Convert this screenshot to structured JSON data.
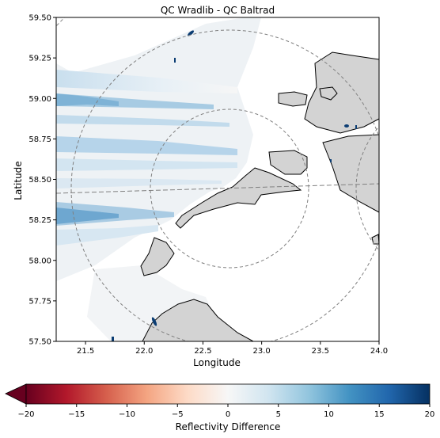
{
  "title": "QC Wradlib - QC Baltrad",
  "xaxis": {
    "label": "Longitude",
    "range": [
      21.25,
      24.0
    ],
    "ticks": [
      "21.5",
      "22.0",
      "22.5",
      "23.0",
      "23.5",
      "24.0"
    ],
    "tick_values": [
      21.5,
      22.0,
      22.5,
      23.0,
      23.5,
      24.0
    ]
  },
  "yaxis": {
    "label": "Latitude",
    "range": [
      57.5,
      59.5
    ],
    "ticks": [
      "57.50",
      "57.75",
      "58.00",
      "58.25",
      "58.50",
      "58.75",
      "59.00",
      "59.25",
      "59.50"
    ],
    "tick_values": [
      57.5,
      57.75,
      58.0,
      58.25,
      58.5,
      58.75,
      59.0,
      59.25,
      59.5
    ]
  },
  "colorbar": {
    "label": "Reflectivity Difference",
    "range": [
      -20,
      20
    ],
    "extend": "min",
    "ticks": [
      "−20",
      "−15",
      "−10",
      "−5",
      "0",
      "5",
      "10",
      "15",
      "20"
    ],
    "tick_values": [
      -20,
      -15,
      -10,
      -5,
      0,
      5,
      10,
      15,
      20
    ],
    "colormap": "RdBu",
    "stops": [
      "#67001f",
      "#b2182b",
      "#d6604d",
      "#f4a582",
      "#fddbc7",
      "#f7f7f7",
      "#d1e5f0",
      "#92c5de",
      "#4393c3",
      "#2166ac",
      "#053061"
    ]
  },
  "colors": {
    "land": "#d3d3d3",
    "coast": "#000000",
    "range_rings": "#808080"
  },
  "radar_beams": [
    {
      "lat_start": 58.98,
      "lat_end": 59.06,
      "lon_end": 22.0,
      "value": 9
    },
    {
      "lat_start": 58.78,
      "lat_end": 58.86,
      "lon_end": 22.1,
      "value": 4
    },
    {
      "lat_start": 58.7,
      "lat_end": 58.76,
      "lon_end": 22.6,
      "value": 7
    },
    {
      "lat_start": 58.25,
      "lat_end": 58.32,
      "lon_end": 22.0,
      "value": 7
    }
  ],
  "chart_data": {
    "type": "map",
    "title": "QC Wradlib - QC Baltrad",
    "xlabel": "Longitude",
    "ylabel": "Latitude",
    "xlim": [
      21.25,
      24.0
    ],
    "ylim": [
      57.5,
      59.5
    ],
    "colorbar_label": "Reflectivity Difference",
    "colorbar_range": [
      -20,
      20
    ]
  }
}
